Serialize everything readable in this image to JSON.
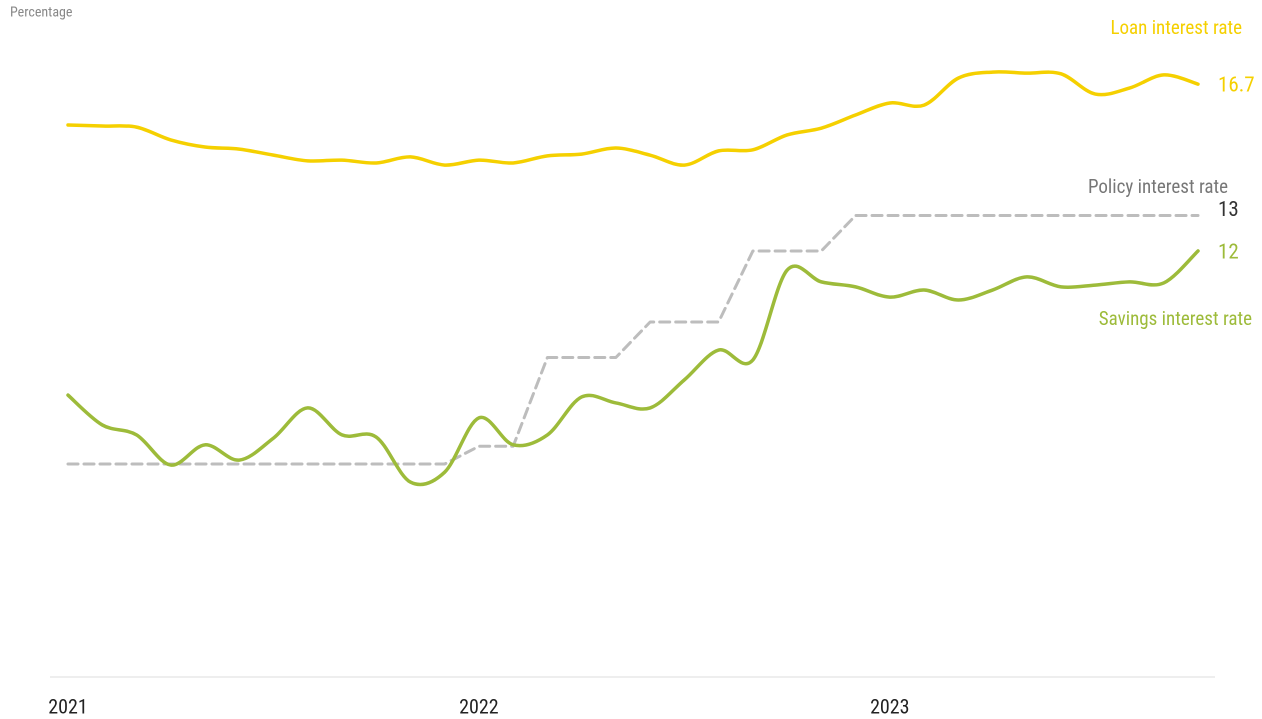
{
  "chart_data": {
    "type": "line",
    "y_label": "Percentage",
    "categories": [
      "2021",
      null,
      null,
      null,
      null,
      null,
      null,
      null,
      null,
      null,
      null,
      null,
      "2022",
      null,
      null,
      null,
      null,
      null,
      null,
      null,
      null,
      null,
      null,
      null,
      "2023",
      null,
      null,
      null,
      null,
      null,
      null,
      null,
      null,
      null
    ],
    "ylim": [
      0,
      18
    ],
    "series": [
      {
        "name": "Loan interest rate",
        "color": "#f5d000",
        "dashed": false,
        "values": [
          15.55,
          15.52,
          15.49,
          15.13,
          14.93,
          14.87,
          14.7,
          14.54,
          14.56,
          14.48,
          14.65,
          14.42,
          14.56,
          14.48,
          14.68,
          14.73,
          14.9,
          14.7,
          14.42,
          14.82,
          14.85,
          15.27,
          15.46,
          15.83,
          16.17,
          16.11,
          16.87,
          17.04,
          17.01,
          16.99,
          16.42,
          16.59,
          16.96,
          16.7
        ]
      },
      {
        "name": "Policy interest rate",
        "color": "#bdbdbd",
        "dashed": true,
        "values": [
          6,
          6,
          6,
          6,
          6,
          6,
          6,
          6,
          6,
          6,
          6,
          6,
          6.5,
          6.5,
          9,
          9,
          9,
          10,
          10,
          10,
          12,
          12,
          12,
          13,
          13,
          13,
          13,
          13,
          13,
          13,
          13,
          13,
          13,
          13
        ]
      },
      {
        "name": "Savings interest rate",
        "color": "#9dbb3a",
        "dashed": false,
        "values": [
          7.94,
          7.1,
          6.82,
          5.97,
          6.54,
          6.11,
          6.73,
          7.58,
          6.82,
          6.76,
          5.49,
          5.77,
          7.3,
          6.54,
          6.82,
          7.89,
          7.72,
          7.58,
          8.37,
          9.21,
          8.93,
          11.46,
          11.13,
          10.99,
          10.7,
          10.9,
          10.62,
          10.9,
          11.27,
          10.99,
          11.04,
          11.13,
          11.1,
          12
        ]
      }
    ]
  }
}
